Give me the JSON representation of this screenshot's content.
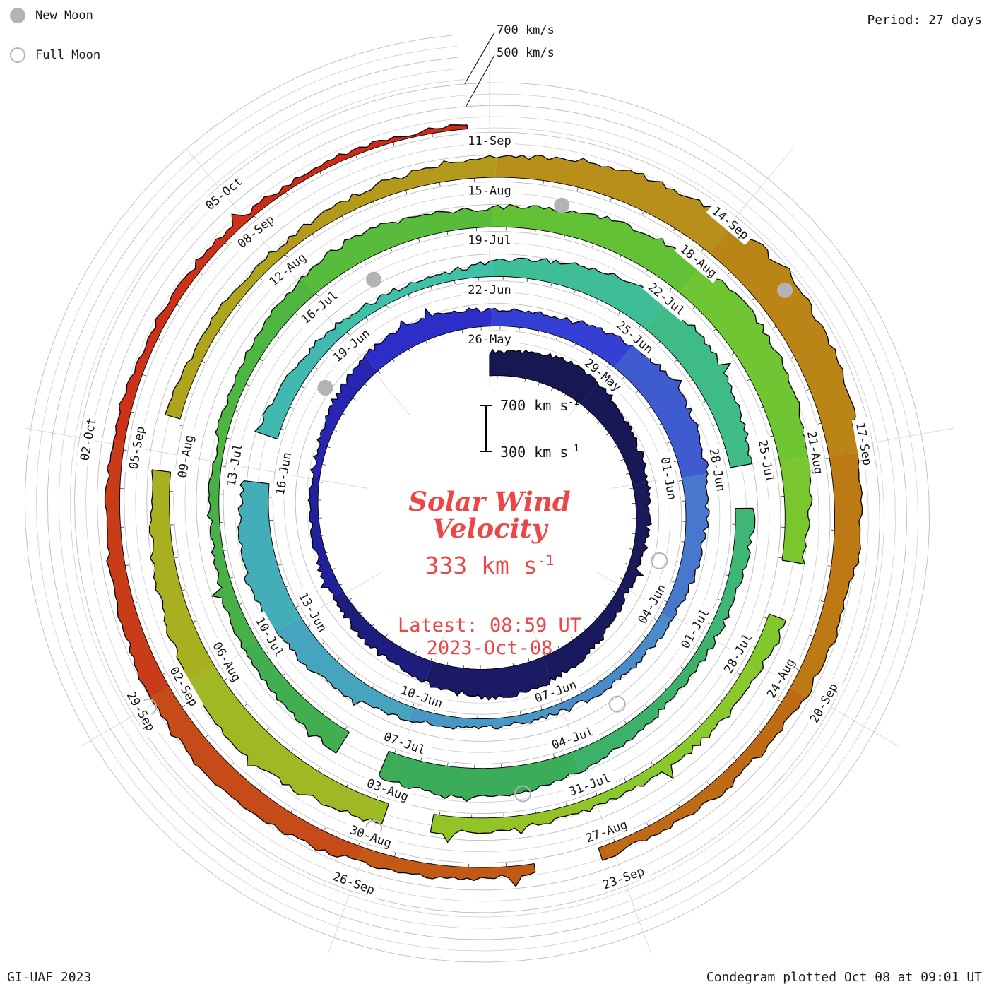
{
  "legend": {
    "new_moon": "New Moon",
    "full_moon": "Full Moon"
  },
  "header": {
    "period_label": "Period: 27 days"
  },
  "footer": {
    "left": "GI-UAF 2023",
    "right": "Condegram plotted Oct 08 at 09:01 UT"
  },
  "annotations": {
    "outer_700": "700 km/s",
    "outer_500": "500 km/s"
  },
  "center": {
    "title_line1": "Solar Wind",
    "title_line2": "Velocity",
    "value": "333 km s",
    "value_sup": "-1",
    "latest_line1": "Latest: 08:59 UT",
    "latest_line2": "2023-Oct-08"
  },
  "chart_data": {
    "type": "spiral-polar-area",
    "name": "condegram",
    "quantity": "solar wind velocity",
    "units": "km/s",
    "period_days": 27,
    "start_date": "2023-May-26",
    "end_date": "2023-Oct-08",
    "latest_value_kms": 333,
    "latest_time": "08:59 UT 2023-Oct-08",
    "end_day": 134.75,
    "radial_range_kms": [
      300,
      700
    ],
    "gridlines_kms": [
      400,
      500,
      600,
      700
    ],
    "scale_bar": {
      "top": "700 km s",
      "bottom": "300 km s",
      "sup": "-1"
    },
    "label_step_days": 3,
    "date_labels": [
      "26-May",
      "29-May",
      "01-Jun",
      "04-Jun",
      "07-Jun",
      "10-Jun",
      "13-Jun",
      "16-Jun",
      "19-Jun",
      "22-Jun",
      "25-Jun",
      "28-Jun",
      "01-Jul",
      "04-Jul",
      "07-Jul",
      "10-Jul",
      "13-Jul",
      "16-Jul",
      "19-Jul",
      "22-Jul",
      "25-Jul",
      "28-Jul",
      "31-Jul",
      "03-Aug",
      "06-Aug",
      "09-Aug",
      "12-Aug",
      "15-Aug",
      "18-Aug",
      "21-Aug",
      "24-Aug",
      "27-Aug",
      "30-Aug",
      "02-Sep",
      "05-Sep",
      "08-Sep",
      "11-Sep",
      "14-Sep",
      "17-Sep",
      "20-Sep",
      "23-Sep",
      "26-Sep",
      "29-Sep",
      "02-Oct",
      "05-Oct"
    ],
    "daily_values_kms": [
      500,
      540,
      570,
      545,
      505,
      465,
      435,
      415,
      395,
      385,
      425,
      475,
      525,
      565,
      535,
      495,
      455,
      425,
      405,
      390,
      375,
      365,
      385,
      425,
      465,
      495,
      475,
      455,
      435,
      485,
      545,
      585,
      565,
      525,
      485,
      445,
      415,
      395,
      385,
      375,
      365,
      385,
      415,
      455,
      505,
      555,
      595,
      565,
      515,
      475,
      435,
      405,
      385,
      375,
      425,
      485,
      555,
      605,
      585,
      535,
      485,
      445,
      415,
      395,
      385,
      425,
      475,
      535,
      575,
      545,
      505,
      465,
      435,
      405,
      385,
      375,
      395,
      435,
      485,
      525,
      495,
      465,
      505,
      565,
      615,
      645,
      605,
      555,
      505,
      465,
      435,
      415,
      395,
      385,
      405,
      445,
      495,
      545,
      585,
      555,
      515,
      475,
      445,
      415,
      395,
      385,
      405,
      435,
      475,
      525,
      585,
      635,
      665,
      625,
      575,
      525,
      485,
      455,
      425,
      405,
      395,
      385,
      405,
      435,
      475,
      515,
      485,
      455,
      425,
      405,
      385,
      370,
      355,
      345,
      338,
      333
    ],
    "data_gaps_days": [
      [
        47.8,
        48.6
      ],
      [
        60.0,
        60.7
      ],
      [
        69.2,
        69.9
      ],
      [
        88.5,
        89.2
      ],
      [
        95.3,
        95.9
      ],
      [
        101.8,
        102.4
      ],
      [
        120.2,
        120.9
      ]
    ],
    "color_stops": [
      {
        "t": 0,
        "c": "#17174e"
      },
      {
        "t": 14,
        "c": "#1a1a66"
      },
      {
        "t": 21,
        "c": "#2323a8"
      },
      {
        "t": 27,
        "c": "#3030d4"
      },
      {
        "t": 36,
        "c": "#4b86cc"
      },
      {
        "t": 44,
        "c": "#46a6bd"
      },
      {
        "t": 52,
        "c": "#3fc0ab"
      },
      {
        "t": 60,
        "c": "#3eba7f"
      },
      {
        "t": 68,
        "c": "#3bab58"
      },
      {
        "t": 76,
        "c": "#4cb441"
      },
      {
        "t": 84,
        "c": "#68c434"
      },
      {
        "t": 92,
        "c": "#8cc92a"
      },
      {
        "t": 100,
        "c": "#a8b120"
      },
      {
        "t": 108,
        "c": "#b6951b"
      },
      {
        "t": 116,
        "c": "#bd7714"
      },
      {
        "t": 122,
        "c": "#c25a16"
      },
      {
        "t": 128,
        "c": "#ca3a1a"
      },
      {
        "t": 135,
        "c": "#d32417"
      }
    ],
    "moons": [
      {
        "date": "03-Jun",
        "type": "full",
        "day": 8
      },
      {
        "date": "18-Jun",
        "type": "new",
        "day": 23
      },
      {
        "date": "03-Jul",
        "type": "full",
        "day": 38
      },
      {
        "date": "17-Jul",
        "type": "new",
        "day": 52
      },
      {
        "date": "01-Aug",
        "type": "full",
        "day": 67
      },
      {
        "date": "16-Aug",
        "type": "new",
        "day": 82
      },
      {
        "date": "30-Aug",
        "type": "full",
        "day": 96
      },
      {
        "date": "15-Sep",
        "type": "new",
        "day": 112
      },
      {
        "date": "29-Sep",
        "type": "full",
        "day": 126
      }
    ],
    "colors": {
      "accent_red": "#ee4545",
      "moon_gray": "#b3b3b3",
      "grid_gray": "#cccccc",
      "edge_black": "#000000",
      "background": "#ffffff"
    }
  }
}
